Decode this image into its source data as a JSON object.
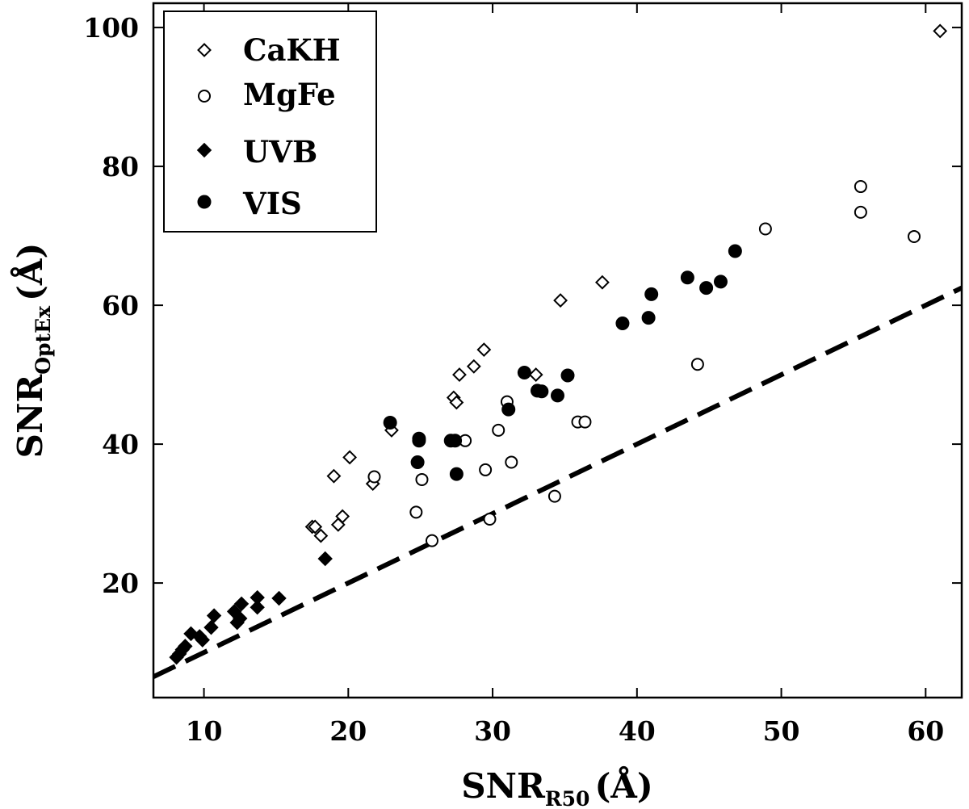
{
  "chart_data": {
    "type": "scatter",
    "title": "",
    "xlabel": {
      "main": "SNR",
      "sub": "R50",
      "unit": "(Å)"
    },
    "ylabel": {
      "main": "SNR",
      "sub": "OptEx",
      "unit": "(Å)"
    },
    "xlim": [
      6.5,
      62.5
    ],
    "ylim": [
      3.5,
      103.5
    ],
    "xticks": [
      10,
      20,
      30,
      40,
      50,
      60
    ],
    "yticks": [
      20,
      40,
      60,
      80,
      100
    ],
    "grid": false,
    "legend_position": "top-left",
    "reference_line": {
      "style": "dashed",
      "color": "#000000",
      "slope": 1,
      "intercept": 0
    },
    "series": [
      {
        "name": "CaKH",
        "marker": "diamond-open",
        "color": "#000000",
        "points": [
          [
            61.0,
            99.5
          ],
          [
            37.6,
            63.3
          ],
          [
            34.7,
            60.7
          ],
          [
            29.4,
            53.6
          ],
          [
            28.7,
            51.2
          ],
          [
            27.7,
            50.0
          ],
          [
            33.0,
            50.0
          ],
          [
            27.3,
            46.7
          ],
          [
            27.5,
            46.0
          ],
          [
            23.0,
            42.0
          ],
          [
            20.1,
            38.1
          ],
          [
            19.0,
            35.4
          ],
          [
            21.7,
            34.3
          ],
          [
            19.6,
            29.6
          ],
          [
            19.3,
            28.4
          ],
          [
            17.5,
            28.1
          ],
          [
            17.7,
            28.1
          ],
          [
            18.1,
            26.8
          ]
        ]
      },
      {
        "name": "MgFe",
        "marker": "circle-open",
        "color": "#000000",
        "points": [
          [
            55.5,
            77.1
          ],
          [
            55.5,
            73.4
          ],
          [
            48.9,
            71.0
          ],
          [
            59.2,
            69.9
          ],
          [
            44.2,
            51.5
          ],
          [
            31.0,
            46.1
          ],
          [
            30.4,
            42.0
          ],
          [
            28.1,
            40.5
          ],
          [
            35.9,
            43.2
          ],
          [
            36.4,
            43.2
          ],
          [
            31.3,
            37.4
          ],
          [
            29.5,
            36.3
          ],
          [
            21.8,
            35.3
          ],
          [
            25.1,
            34.9
          ],
          [
            34.3,
            32.5
          ],
          [
            24.7,
            30.2
          ],
          [
            29.8,
            29.2
          ],
          [
            25.8,
            26.1
          ]
        ]
      },
      {
        "name": "UVB",
        "marker": "diamond-filled",
        "color": "#000000",
        "points": [
          [
            18.4,
            23.5
          ],
          [
            15.2,
            17.8
          ],
          [
            13.7,
            17.9
          ],
          [
            13.7,
            16.5
          ],
          [
            12.6,
            17.0
          ],
          [
            12.1,
            15.9
          ],
          [
            12.5,
            14.9
          ],
          [
            12.3,
            14.3
          ],
          [
            10.7,
            15.3
          ],
          [
            10.5,
            13.6
          ],
          [
            9.1,
            12.7
          ],
          [
            9.7,
            12.3
          ],
          [
            9.9,
            11.8
          ],
          [
            8.7,
            10.9
          ],
          [
            8.5,
            10.4
          ],
          [
            8.3,
            9.8
          ],
          [
            8.1,
            9.3
          ]
        ]
      },
      {
        "name": "VIS",
        "marker": "circle-filled",
        "color": "#000000",
        "points": [
          [
            46.8,
            67.8
          ],
          [
            43.5,
            64.0
          ],
          [
            45.8,
            63.4
          ],
          [
            44.8,
            62.5
          ],
          [
            41.0,
            61.6
          ],
          [
            40.8,
            58.2
          ],
          [
            39.0,
            57.4
          ],
          [
            32.2,
            50.3
          ],
          [
            35.2,
            49.9
          ],
          [
            33.1,
            47.7
          ],
          [
            33.4,
            47.6
          ],
          [
            34.5,
            47.0
          ],
          [
            31.1,
            45.0
          ],
          [
            22.9,
            43.1
          ],
          [
            24.9,
            40.8
          ],
          [
            24.9,
            40.5
          ],
          [
            27.1,
            40.5
          ],
          [
            27.4,
            40.5
          ],
          [
            24.8,
            37.4
          ],
          [
            27.5,
            35.7
          ]
        ]
      }
    ]
  }
}
